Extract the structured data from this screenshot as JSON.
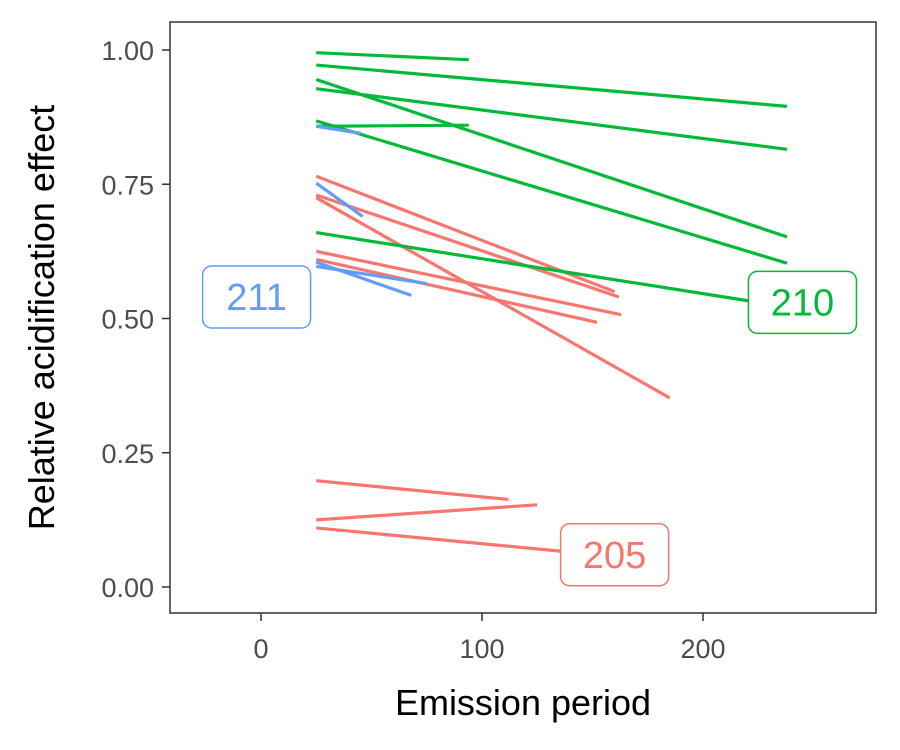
{
  "chart_data": {
    "type": "line",
    "title": "",
    "xlabel": "Emission period",
    "ylabel": "Relative acidification effect",
    "xlim": [
      -40,
      278
    ],
    "ylim": [
      -0.05,
      1.05
    ],
    "x_ticks": [
      0,
      100,
      200
    ],
    "y_ticks": [
      0.0,
      0.25,
      0.5,
      0.75,
      1.0
    ],
    "x_tick_labels": [
      "0",
      "100",
      "200"
    ],
    "y_tick_labels": [
      "0.00",
      "0.25",
      "0.50",
      "0.75",
      "1.00"
    ],
    "grid": false,
    "legend": "none",
    "series": [
      {
        "label": "205",
        "color": "#F8766D",
        "label_position": {
          "x": 160,
          "y": 0.06
        },
        "segments": [
          {
            "x": [
              25,
              160
            ],
            "y": [
              0.765,
              0.55
            ]
          },
          {
            "x": [
              25,
              162
            ],
            "y": [
              0.73,
              0.54
            ]
          },
          {
            "x": [
              25,
              185
            ],
            "y": [
              0.725,
              0.352
            ]
          },
          {
            "x": [
              25,
              163
            ],
            "y": [
              0.625,
              0.507
            ]
          },
          {
            "x": [
              25,
              152
            ],
            "y": [
              0.61,
              0.493
            ]
          },
          {
            "x": [
              25,
              112
            ],
            "y": [
              0.198,
              0.163
            ]
          },
          {
            "x": [
              25,
              125
            ],
            "y": [
              0.125,
              0.153
            ]
          },
          {
            "x": [
              25,
              140
            ],
            "y": [
              0.11,
              0.065
            ]
          }
        ]
      },
      {
        "label": "210",
        "color": "#00BA38",
        "label_position": {
          "x": 245,
          "y": 0.53
        },
        "segments": [
          {
            "x": [
              25,
              94
            ],
            "y": [
              0.995,
              0.982
            ]
          },
          {
            "x": [
              25,
              238
            ],
            "y": [
              0.972,
              0.895
            ]
          },
          {
            "x": [
              25,
              238
            ],
            "y": [
              0.928,
              0.815
            ]
          },
          {
            "x": [
              25,
              238
            ],
            "y": [
              0.945,
              0.652
            ]
          },
          {
            "x": [
              25,
              238
            ],
            "y": [
              0.868,
              0.603
            ]
          },
          {
            "x": [
              25,
              94
            ],
            "y": [
              0.858,
              0.86
            ]
          },
          {
            "x": [
              25,
              225
            ],
            "y": [
              0.66,
              0.53
            ]
          }
        ]
      },
      {
        "label": "211",
        "color": "#619CFF",
        "label_position": {
          "x": -2,
          "y": 0.54
        },
        "segments": [
          {
            "x": [
              25,
              45
            ],
            "y": [
              0.858,
              0.845
            ]
          },
          {
            "x": [
              25,
              46
            ],
            "y": [
              0.752,
              0.69
            ]
          },
          {
            "x": [
              25,
              75
            ],
            "y": [
              0.597,
              0.565
            ]
          },
          {
            "x": [
              25,
              68
            ],
            "y": [
              0.605,
              0.543
            ]
          }
        ]
      }
    ]
  }
}
